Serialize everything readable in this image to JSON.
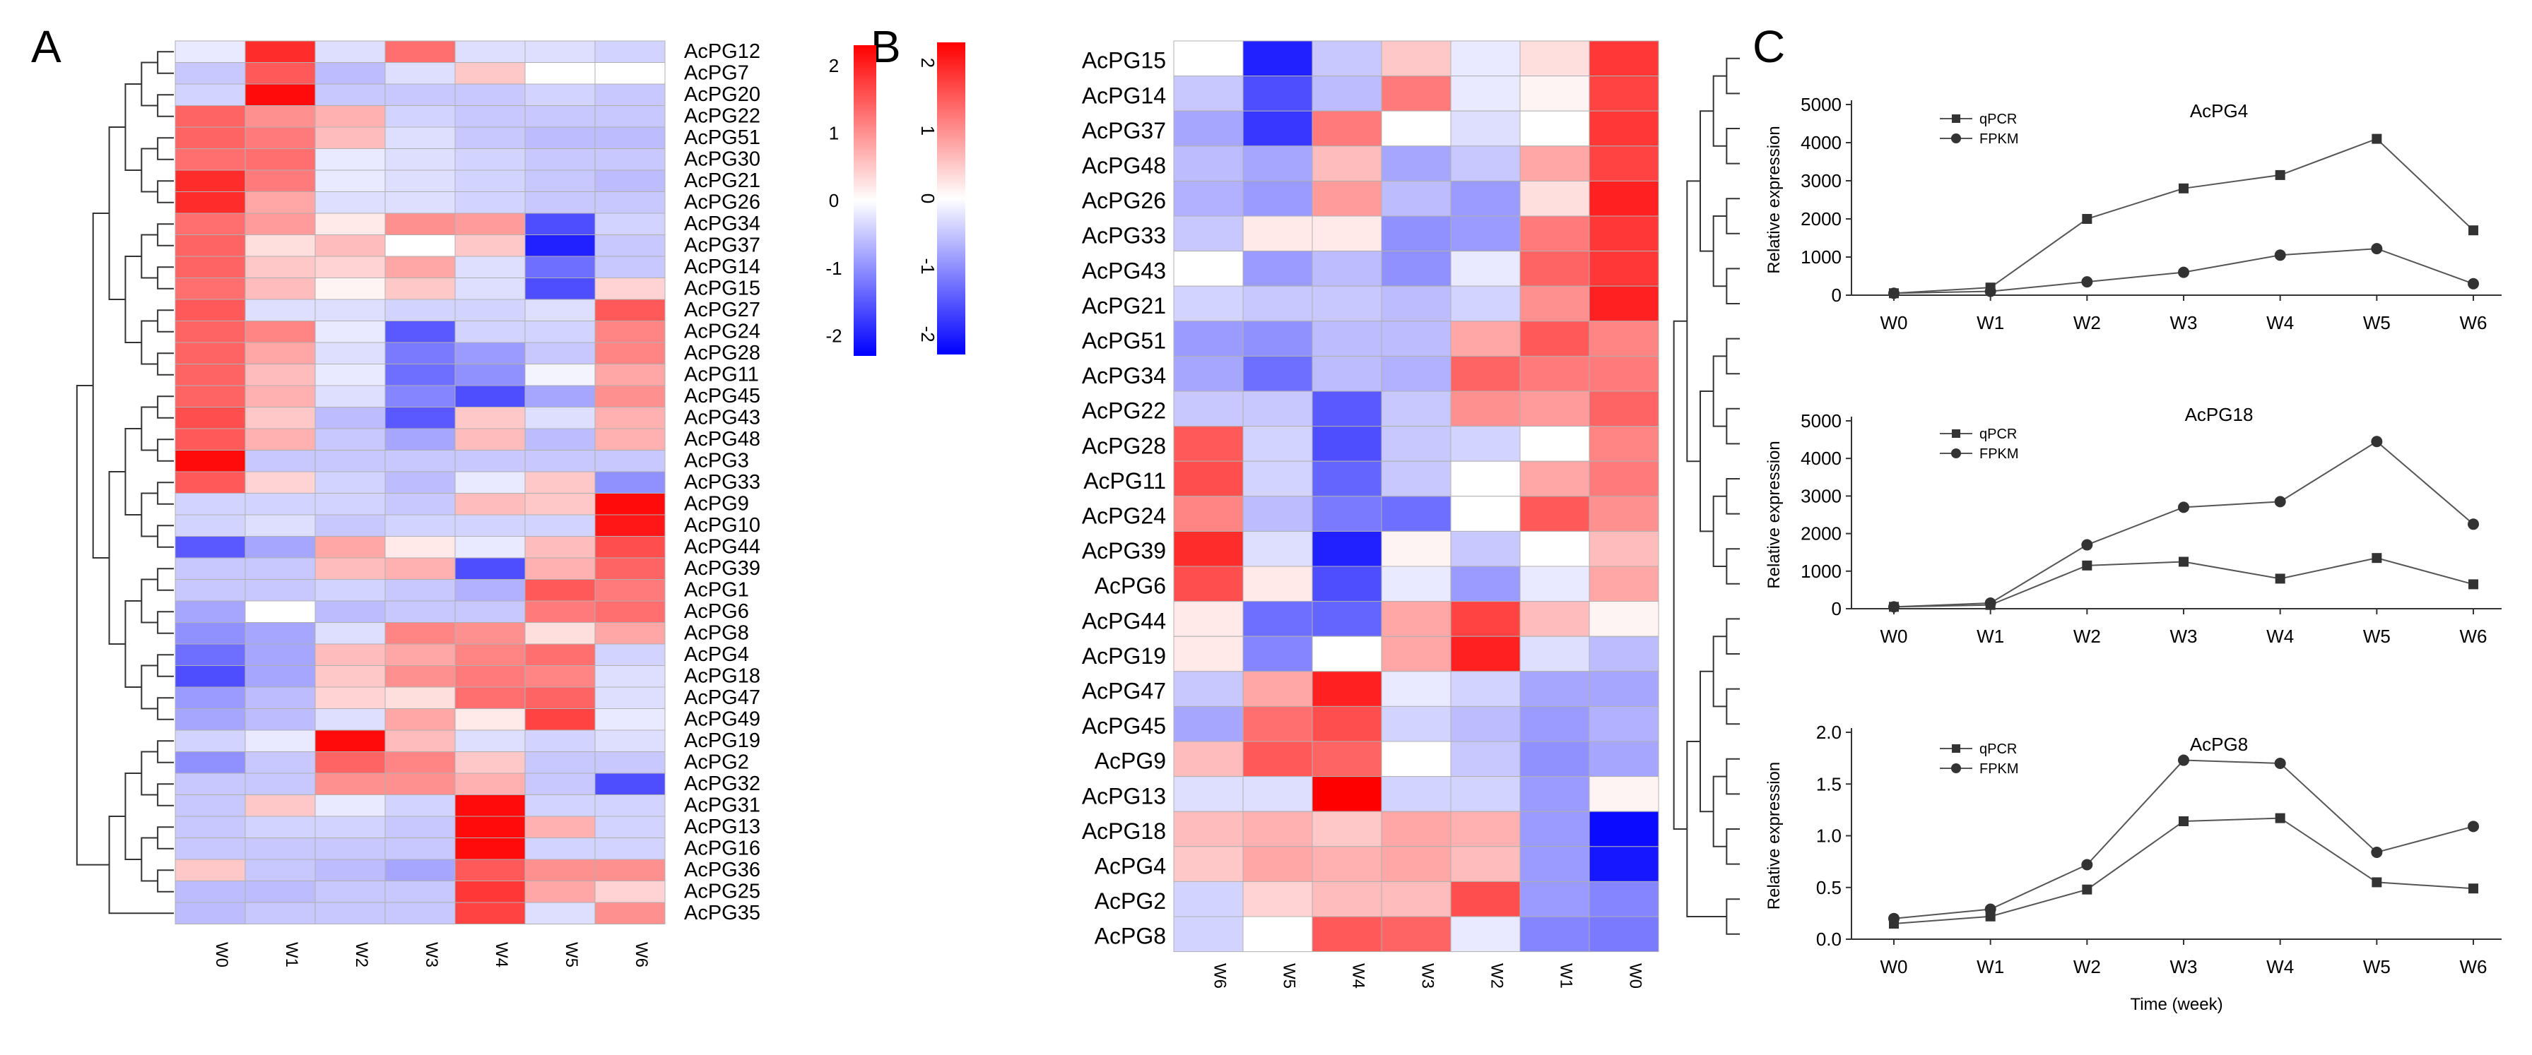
{
  "panel_letters": {
    "a": "A",
    "b": "B",
    "c": "C"
  },
  "chart_data": [
    {
      "type": "heatmap",
      "panel": "A",
      "columns": [
        "W0",
        "W1",
        "W2",
        "W3",
        "W4",
        "W5",
        "W6"
      ],
      "rows": [
        "AcPG12",
        "AcPG7",
        "AcPG20",
        "AcPG22",
        "AcPG51",
        "AcPG30",
        "AcPG21",
        "AcPG26",
        "AcPG34",
        "AcPG37",
        "AcPG14",
        "AcPG15",
        "AcPG27",
        "AcPG24",
        "AcPG28",
        "AcPG11",
        "AcPG45",
        "AcPG43",
        "AcPG48",
        "AcPG3",
        "AcPG33",
        "AcPG9",
        "AcPG10",
        "AcPG44",
        "AcPG39",
        "AcPG1",
        "AcPG6",
        "AcPG8",
        "AcPG4",
        "AcPG18",
        "AcPG47",
        "AcPG49",
        "AcPG19",
        "AcPG2",
        "AcPG32",
        "AcPG31",
        "AcPG13",
        "AcPG16",
        "AcPG36",
        "AcPG25",
        "AcPG35"
      ],
      "values": [
        [
          -0.2,
          1.9,
          -0.3,
          1.3,
          -0.3,
          -0.3,
          -0.4
        ],
        [
          -0.5,
          1.5,
          -0.6,
          -0.3,
          0.5,
          0.0,
          0.0
        ],
        [
          -0.4,
          2.2,
          -0.5,
          -0.5,
          -0.5,
          -0.4,
          -0.5
        ],
        [
          1.4,
          1.0,
          0.7,
          -0.4,
          -0.5,
          -0.5,
          -0.5
        ],
        [
          1.4,
          1.2,
          0.6,
          -0.3,
          -0.5,
          -0.6,
          -0.6
        ],
        [
          1.3,
          1.3,
          -0.2,
          -0.3,
          -0.4,
          -0.5,
          -0.5
        ],
        [
          1.9,
          1.2,
          -0.2,
          -0.3,
          -0.4,
          -0.5,
          -0.6
        ],
        [
          1.9,
          0.8,
          -0.3,
          -0.3,
          -0.4,
          -0.5,
          -0.5
        ],
        [
          1.3,
          0.9,
          0.2,
          1.0,
          0.9,
          -1.6,
          -0.4
        ],
        [
          1.4,
          0.3,
          0.6,
          0.0,
          0.5,
          -2.0,
          -0.5
        ],
        [
          1.4,
          0.5,
          0.4,
          0.8,
          -0.3,
          -1.3,
          -0.5
        ],
        [
          1.3,
          0.6,
          0.1,
          0.5,
          -0.3,
          -1.6,
          0.4
        ],
        [
          1.5,
          -0.3,
          -0.3,
          -0.4,
          -0.4,
          -0.3,
          1.5
        ],
        [
          1.4,
          1.1,
          -0.2,
          -1.5,
          -0.4,
          -0.4,
          1.1
        ],
        [
          1.4,
          0.8,
          -0.3,
          -1.2,
          -0.9,
          -0.5,
          1.1
        ],
        [
          1.4,
          0.6,
          -0.2,
          -1.3,
          -1.0,
          -0.1,
          0.8
        ],
        [
          1.4,
          0.7,
          -0.3,
          -1.1,
          -1.6,
          -0.8,
          1.0
        ],
        [
          1.6,
          0.5,
          -0.6,
          -1.5,
          0.5,
          -0.3,
          0.7
        ],
        [
          1.5,
          0.7,
          -0.5,
          -0.8,
          0.6,
          -0.6,
          0.7
        ],
        [
          2.2,
          -0.5,
          -0.5,
          -0.5,
          -0.5,
          -0.5,
          -0.5
        ],
        [
          1.5,
          0.4,
          -0.4,
          -0.6,
          -0.2,
          0.5,
          -1.0
        ],
        [
          -0.4,
          -0.4,
          -0.4,
          -0.5,
          0.6,
          0.5,
          2.2
        ],
        [
          -0.4,
          -0.3,
          -0.5,
          -0.4,
          -0.4,
          -0.4,
          2.1
        ],
        [
          -1.5,
          -0.8,
          0.8,
          0.2,
          -0.2,
          0.6,
          1.6
        ],
        [
          -0.5,
          -0.5,
          0.6,
          0.7,
          -1.6,
          0.7,
          1.4
        ],
        [
          -0.5,
          -0.5,
          -0.4,
          -0.5,
          -0.7,
          1.5,
          1.2
        ],
        [
          -0.8,
          0.0,
          -0.6,
          -0.5,
          -0.5,
          1.2,
          1.3
        ],
        [
          -1.0,
          -0.8,
          -0.3,
          1.1,
          1.0,
          0.3,
          0.8
        ],
        [
          -1.3,
          -0.8,
          0.6,
          0.8,
          1.1,
          1.3,
          -0.4
        ],
        [
          -1.6,
          -0.8,
          0.5,
          1.0,
          1.2,
          1.1,
          -0.3
        ],
        [
          -0.9,
          -0.6,
          0.4,
          0.3,
          1.3,
          1.4,
          -0.3
        ],
        [
          -0.8,
          -0.6,
          -0.3,
          0.8,
          0.2,
          1.7,
          -0.2
        ],
        [
          -0.4,
          -0.2,
          2.2,
          0.6,
          -0.3,
          -0.4,
          -0.3
        ],
        [
          -1.0,
          -0.5,
          1.4,
          1.1,
          0.5,
          -0.5,
          -0.5
        ],
        [
          -0.5,
          -0.5,
          1.0,
          1.0,
          0.7,
          -0.5,
          -1.6
        ],
        [
          -0.5,
          0.5,
          -0.2,
          -0.4,
          2.2,
          -0.4,
          -0.4
        ],
        [
          -0.5,
          -0.4,
          -0.4,
          -0.5,
          2.2,
          0.7,
          -0.4
        ],
        [
          -0.5,
          -0.5,
          -0.5,
          -0.5,
          2.2,
          -0.4,
          -0.4
        ],
        [
          0.5,
          -0.5,
          -0.6,
          -0.8,
          1.5,
          1.0,
          1.0
        ],
        [
          -0.6,
          -0.6,
          -0.5,
          -0.5,
          1.8,
          0.8,
          0.4
        ],
        [
          -0.6,
          -0.5,
          -0.5,
          -0.5,
          1.7,
          -0.3,
          1.0
        ]
      ],
      "legend": {
        "ticks": [
          "2",
          "1",
          "0",
          "-1",
          "-2"
        ],
        "range": [
          -2.3,
          2.3
        ]
      }
    },
    {
      "type": "heatmap",
      "panel": "B",
      "columns": [
        "W6",
        "W5",
        "W4",
        "W3",
        "W2",
        "W1",
        "W0"
      ],
      "rows": [
        "AcPG15",
        "AcPG14",
        "AcPG37",
        "AcPG48",
        "AcPG26",
        "AcPG33",
        "AcPG43",
        "AcPG21",
        "AcPG51",
        "AcPG34",
        "AcPG22",
        "AcPG28",
        "AcPG11",
        "AcPG24",
        "AcPG39",
        "AcPG6",
        "AcPG44",
        "AcPG19",
        "AcPG47",
        "AcPG45",
        "AcPG9",
        "AcPG13",
        "AcPG18",
        "AcPG4",
        "AcPG2",
        "AcPG8"
      ],
      "values": [
        [
          0.0,
          -2.0,
          -0.5,
          0.5,
          -0.2,
          0.3,
          1.8
        ],
        [
          -0.5,
          -1.6,
          -0.6,
          1.2,
          -0.2,
          0.1,
          1.7
        ],
        [
          -0.8,
          -1.8,
          1.2,
          0.0,
          -0.3,
          0.0,
          1.8
        ],
        [
          -0.6,
          -0.8,
          0.6,
          -0.8,
          -0.5,
          0.8,
          1.7
        ],
        [
          -0.7,
          -0.9,
          0.9,
          -0.6,
          -0.9,
          0.3,
          2.0
        ],
        [
          -0.5,
          0.2,
          0.2,
          -1.0,
          -0.9,
          1.2,
          1.8
        ],
        [
          0.0,
          -0.9,
          -0.6,
          -1.0,
          -0.2,
          1.4,
          1.8
        ],
        [
          -0.4,
          -0.5,
          -0.5,
          -0.6,
          -0.4,
          1.0,
          2.0
        ],
        [
          -0.9,
          -1.0,
          -0.6,
          -0.6,
          0.8,
          1.5,
          1.1
        ],
        [
          -0.8,
          -1.3,
          -0.6,
          -0.7,
          1.4,
          1.2,
          1.2
        ],
        [
          -0.5,
          -0.5,
          -1.5,
          -0.5,
          1.0,
          0.9,
          1.4
        ],
        [
          1.5,
          -0.4,
          -1.6,
          -0.5,
          -0.4,
          0.0,
          1.1
        ],
        [
          1.6,
          -0.4,
          -1.4,
          -0.5,
          0.0,
          0.8,
          1.2
        ],
        [
          1.1,
          -0.6,
          -1.2,
          -1.3,
          0.0,
          1.5,
          1.0
        ],
        [
          1.9,
          -0.3,
          -2.0,
          0.1,
          -0.5,
          0.0,
          0.6
        ],
        [
          1.6,
          0.2,
          -1.6,
          -0.2,
          -0.9,
          -0.2,
          0.8
        ],
        [
          0.2,
          -1.3,
          -1.4,
          0.8,
          1.7,
          0.6,
          0.1
        ],
        [
          0.2,
          -1.1,
          0.0,
          0.8,
          2.0,
          -0.3,
          -0.6
        ],
        [
          -0.5,
          0.8,
          2.0,
          -0.2,
          -0.4,
          -0.8,
          -0.8
        ],
        [
          -0.8,
          1.3,
          1.6,
          -0.4,
          -0.6,
          -0.9,
          -0.7
        ],
        [
          0.6,
          1.5,
          1.4,
          0.0,
          -0.5,
          -1.0,
          -0.8
        ],
        [
          -0.3,
          -0.3,
          2.3,
          -0.4,
          -0.4,
          -0.9,
          0.1
        ],
        [
          0.6,
          0.7,
          0.5,
          0.8,
          0.7,
          -0.9,
          -2.2
        ],
        [
          0.5,
          0.8,
          0.7,
          0.8,
          0.6,
          -0.9,
          -2.1
        ],
        [
          -0.4,
          0.4,
          0.6,
          0.6,
          1.6,
          -0.9,
          -1.1
        ],
        [
          -0.4,
          0.0,
          1.5,
          1.4,
          -0.2,
          -1.1,
          -1.2
        ]
      ],
      "legend": {
        "ticks": [
          "2",
          "1",
          "0",
          "-1",
          "-2"
        ],
        "range": [
          -2.3,
          2.3
        ]
      }
    },
    {
      "type": "line",
      "panel": "C1",
      "title": "AcPG4",
      "ylabel": "Relative expression",
      "x": [
        "W0",
        "W1",
        "W2",
        "W3",
        "W4",
        "W5",
        "W6"
      ],
      "ylim": [
        0,
        5000
      ],
      "yticks": [
        0,
        1000,
        2000,
        3000,
        4000,
        5000
      ],
      "series": [
        {
          "name": "qPCR",
          "marker": "square",
          "values": [
            50,
            200,
            2000,
            2800,
            3150,
            4100,
            1700
          ]
        },
        {
          "name": "FPKM",
          "marker": "circle",
          "values": [
            50,
            100,
            350,
            600,
            1050,
            1220,
            300
          ]
        }
      ]
    },
    {
      "type": "line",
      "panel": "C2",
      "title": "AcPG18",
      "ylabel": "Relative expression",
      "x": [
        "W0",
        "W1",
        "W2",
        "W3",
        "W4",
        "W5",
        "W6"
      ],
      "ylim": [
        0,
        5000
      ],
      "yticks": [
        0,
        1000,
        2000,
        3000,
        4000,
        5000
      ],
      "series": [
        {
          "name": "qPCR",
          "marker": "square",
          "values": [
            50,
            100,
            1150,
            1250,
            800,
            1350,
            650
          ]
        },
        {
          "name": "FPKM",
          "marker": "circle",
          "values": [
            50,
            150,
            1700,
            2700,
            2850,
            4450,
            2250
          ]
        }
      ]
    },
    {
      "type": "line",
      "panel": "C3",
      "title": "AcPG8",
      "ylabel": "Relative expression",
      "xlabel": "Time (week)",
      "x": [
        "W0",
        "W1",
        "W2",
        "W3",
        "W4",
        "W5",
        "W6"
      ],
      "ylim": [
        0,
        2.0
      ],
      "yticks": [
        "0.0",
        "0.5",
        "1.0",
        "1.5",
        "2.0"
      ],
      "series": [
        {
          "name": "qPCR",
          "marker": "square",
          "values": [
            0.15,
            0.22,
            0.48,
            1.14,
            1.17,
            0.55,
            0.49
          ]
        },
        {
          "name": "FPKM",
          "marker": "circle",
          "values": [
            0.2,
            0.29,
            0.72,
            1.73,
            1.7,
            0.84,
            1.09
          ]
        }
      ]
    }
  ]
}
